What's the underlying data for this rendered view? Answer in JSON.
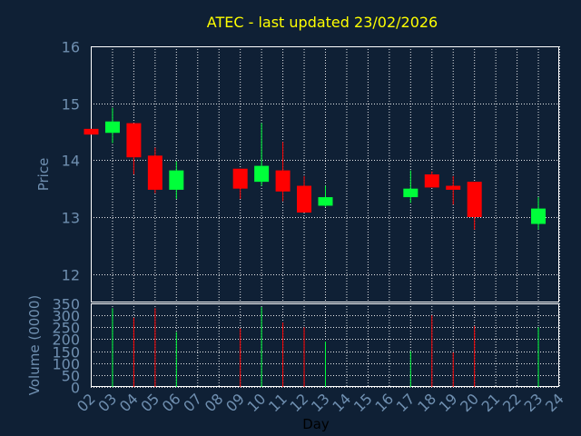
{
  "chart_data": {
    "type": "candlestick",
    "title": "ATEC - last updated 23/02/2026",
    "xlabel": "Day",
    "x_ticks": [
      "02",
      "03",
      "04",
      "05",
      "06",
      "07",
      "08",
      "09",
      "10",
      "11",
      "12",
      "13",
      "14",
      "15",
      "16",
      "17",
      "18",
      "19",
      "20",
      "21",
      "22",
      "23",
      "24"
    ],
    "price_panel": {
      "ylabel": "Price",
      "ylim": [
        11.5,
        16
      ],
      "y_ticks": [
        "12",
        "13",
        "14",
        "15",
        "16"
      ],
      "candles": [
        {
          "day": 2,
          "open": 14.55,
          "high": 14.55,
          "low": 14.45,
          "close": 14.45
        },
        {
          "day": 3,
          "open": 14.48,
          "high": 14.92,
          "low": 14.3,
          "close": 14.68
        },
        {
          "day": 4,
          "open": 14.65,
          "high": 14.65,
          "low": 13.75,
          "close": 14.05
        },
        {
          "day": 5,
          "open": 14.08,
          "high": 14.22,
          "low": 13.42,
          "close": 13.48
        },
        {
          "day": 6,
          "open": 13.48,
          "high": 13.98,
          "low": 13.32,
          "close": 13.82
        },
        {
          "day": 9,
          "open": 13.85,
          "high": 13.85,
          "low": 13.32,
          "close": 13.5
        },
        {
          "day": 10,
          "open": 13.62,
          "high": 14.65,
          "low": 13.55,
          "close": 13.9
        },
        {
          "day": 11,
          "open": 13.82,
          "high": 14.32,
          "low": 13.28,
          "close": 13.45
        },
        {
          "day": 12,
          "open": 13.55,
          "high": 13.72,
          "low": 13.08,
          "close": 13.08
        },
        {
          "day": 13,
          "open": 13.2,
          "high": 13.55,
          "low": 13.18,
          "close": 13.35
        },
        {
          "day": 17,
          "open": 13.35,
          "high": 13.82,
          "low": 13.25,
          "close": 13.5
        },
        {
          "day": 18,
          "open": 13.75,
          "high": 13.8,
          "low": 13.52,
          "close": 13.52
        },
        {
          "day": 19,
          "open": 13.55,
          "high": 13.72,
          "low": 13.22,
          "close": 13.48
        },
        {
          "day": 20,
          "open": 13.62,
          "high": 13.62,
          "low": 12.78,
          "close": 13.0
        },
        {
          "day": 23,
          "open": 12.88,
          "high": 13.35,
          "low": 12.78,
          "close": 13.15
        }
      ]
    },
    "volume_panel": {
      "ylabel": "Volume (0000)",
      "ylim": [
        0,
        350
      ],
      "y_ticks": [
        "0",
        "50",
        "100",
        "150",
        "200",
        "250",
        "300",
        "350"
      ],
      "bars": [
        {
          "day": 3,
          "value": 330,
          "direction": "up"
        },
        {
          "day": 4,
          "value": 290,
          "direction": "down"
        },
        {
          "day": 5,
          "value": 330,
          "direction": "down"
        },
        {
          "day": 6,
          "value": 230,
          "direction": "up"
        },
        {
          "day": 9,
          "value": 245,
          "direction": "down"
        },
        {
          "day": 10,
          "value": 335,
          "direction": "up"
        },
        {
          "day": 11,
          "value": 270,
          "direction": "down"
        },
        {
          "day": 12,
          "value": 250,
          "direction": "down"
        },
        {
          "day": 13,
          "value": 190,
          "direction": "up"
        },
        {
          "day": 17,
          "value": 150,
          "direction": "up"
        },
        {
          "day": 18,
          "value": 300,
          "direction": "down"
        },
        {
          "day": 19,
          "value": 145,
          "direction": "down"
        },
        {
          "day": 20,
          "value": 255,
          "direction": "down"
        },
        {
          "day": 23,
          "value": 250,
          "direction": "up"
        }
      ]
    },
    "grid": true,
    "colors": {
      "background": "#0f2035",
      "plot_background": "#0f2035",
      "up": "#00ff3a",
      "down": "#ff0000",
      "title": "#ffff00",
      "axis_text": "#6f8fb0",
      "grid": "#ffffff"
    }
  }
}
